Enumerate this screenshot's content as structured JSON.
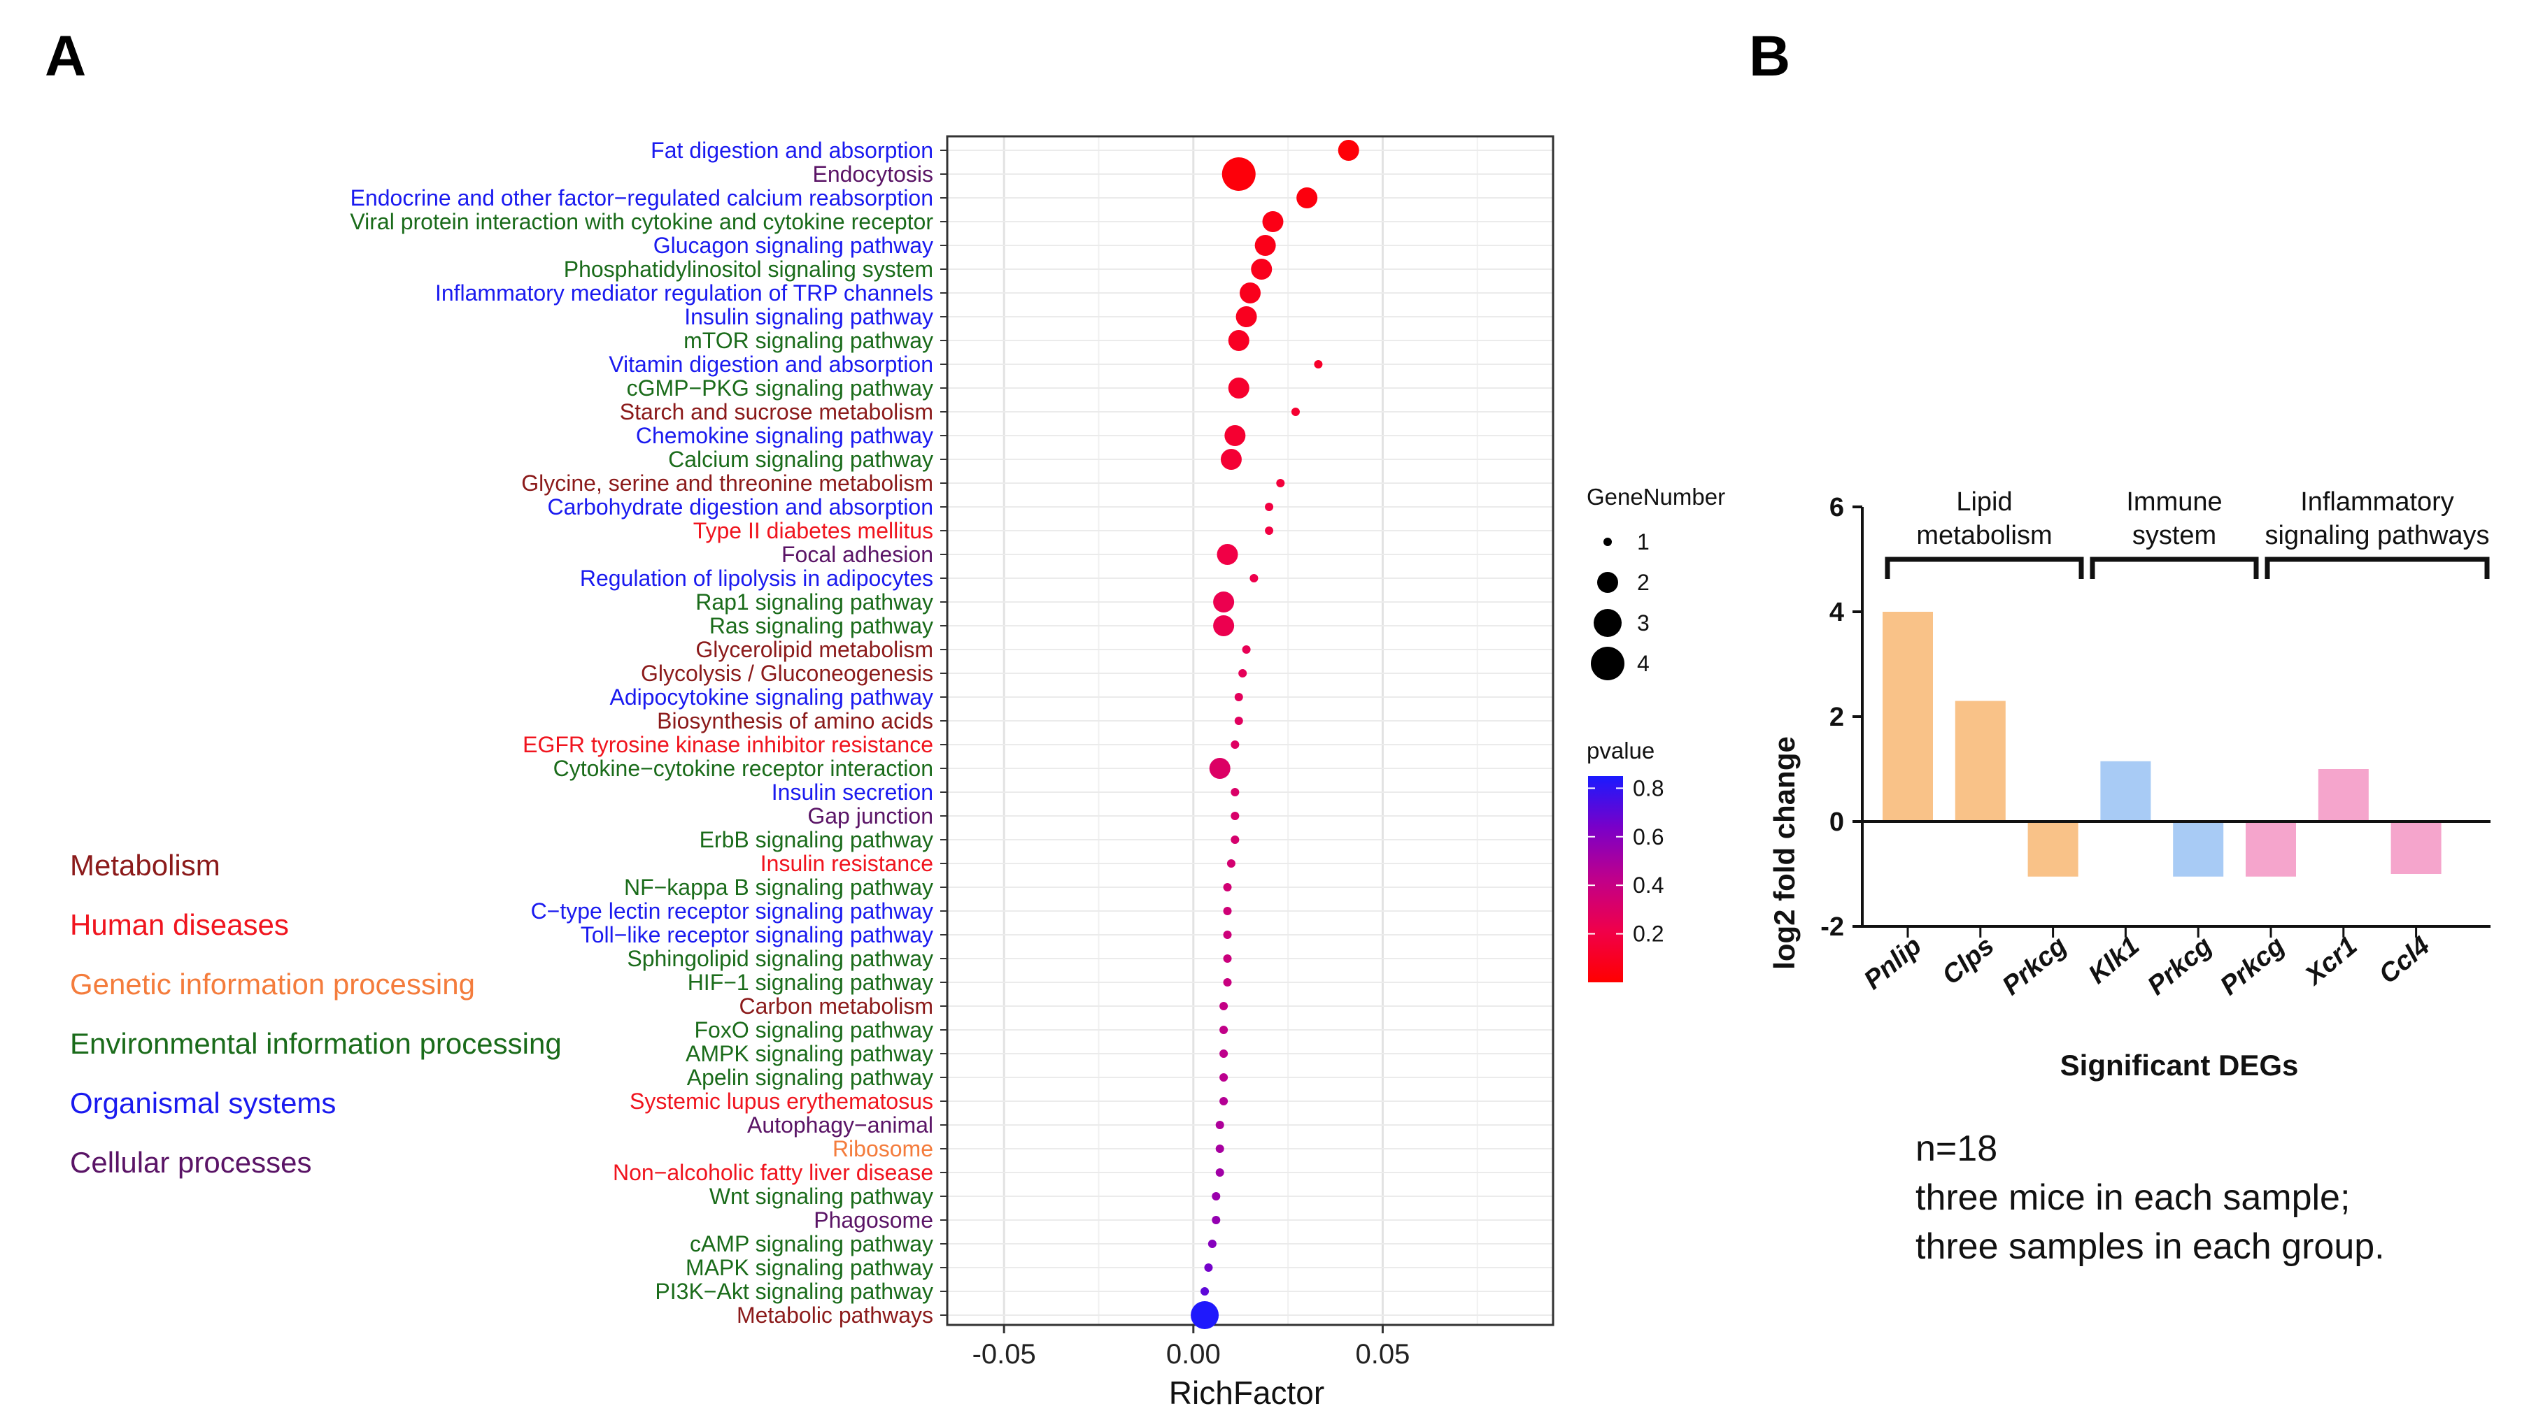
{
  "panel_a_label": "A",
  "panel_b_label": "B",
  "colors": {
    "Metabolism": "#8b1a1a",
    "Human diseases": "#f0141e",
    "Genetic information processing": "#f47c3c",
    "Environmental information processing": "#1a6b1a",
    "Organismal systems": "#1a1aef",
    "Cellular processes": "#5a1466"
  },
  "category_legend": [
    "Metabolism",
    "Human diseases",
    "Genetic information processing",
    "Environmental information processing",
    "Organismal systems",
    "Cellular processes"
  ],
  "chart_data": [
    {
      "type": "scatter",
      "xlabel": "RichFactor",
      "xlim": [
        -0.065,
        0.095
      ],
      "xticks": [
        -0.05,
        0.0,
        0.05
      ],
      "xtick_labels": [
        "-0.05",
        "0.00",
        "0.05"
      ],
      "size_legend_title": "GeneNumber",
      "size_legend_values": [
        1,
        2,
        3,
        4
      ],
      "color_legend_title": "pvalue",
      "color_legend_ticks": [
        "0.8",
        "0.6",
        "0.4",
        "0.2"
      ],
      "color_legend_values": [
        0.8,
        0.6,
        0.4,
        0.2
      ],
      "color_range": [
        0.0,
        0.85
      ],
      "points": [
        {
          "pathway": "Fat digestion and absorption",
          "category": "Organismal systems",
          "rich": 0.041,
          "genes": 2,
          "p": 0.02
        },
        {
          "pathway": "Endocytosis",
          "category": "Cellular processes",
          "rich": 0.012,
          "genes": 4,
          "p": 0.03
        },
        {
          "pathway": "Endocrine and other factor−regulated calcium reabsorption",
          "category": "Organismal systems",
          "rich": 0.03,
          "genes": 2,
          "p": 0.04
        },
        {
          "pathway": "Viral protein interaction with cytokine and cytokine receptor",
          "category": "Environmental information processing",
          "rich": 0.021,
          "genes": 2,
          "p": 0.06
        },
        {
          "pathway": "Glucagon signaling pathway",
          "category": "Organismal systems",
          "rich": 0.019,
          "genes": 2,
          "p": 0.07
        },
        {
          "pathway": "Phosphatidylinositol signaling system",
          "category": "Environmental information processing",
          "rich": 0.018,
          "genes": 2,
          "p": 0.08
        },
        {
          "pathway": "Inflammatory mediator regulation of TRP channels",
          "category": "Organismal systems",
          "rich": 0.015,
          "genes": 2,
          "p": 0.08
        },
        {
          "pathway": "Insulin signaling pathway",
          "category": "Organismal systems",
          "rich": 0.014,
          "genes": 2,
          "p": 0.09
        },
        {
          "pathway": "mTOR signaling pathway",
          "category": "Environmental information processing",
          "rich": 0.012,
          "genes": 2,
          "p": 0.1
        },
        {
          "pathway": "Vitamin digestion and absorption",
          "category": "Organismal systems",
          "rich": 0.033,
          "genes": 1,
          "p": 0.12
        },
        {
          "pathway": "cGMP−PKG signaling pathway",
          "category": "Environmental information processing",
          "rich": 0.012,
          "genes": 2,
          "p": 0.13
        },
        {
          "pathway": "Starch and sucrose metabolism",
          "category": "Metabolism",
          "rich": 0.027,
          "genes": 1,
          "p": 0.14
        },
        {
          "pathway": "Chemokine signaling pathway",
          "category": "Organismal systems",
          "rich": 0.011,
          "genes": 2,
          "p": 0.14
        },
        {
          "pathway": "Calcium signaling pathway",
          "category": "Environmental information processing",
          "rich": 0.01,
          "genes": 2,
          "p": 0.15
        },
        {
          "pathway": "Glycine, serine and threonine metabolism",
          "category": "Metabolism",
          "rich": 0.023,
          "genes": 1,
          "p": 0.17
        },
        {
          "pathway": "Carbohydrate digestion and absorption",
          "category": "Organismal systems",
          "rich": 0.02,
          "genes": 1,
          "p": 0.19
        },
        {
          "pathway": "Type II diabetes mellitus",
          "category": "Human diseases",
          "rich": 0.02,
          "genes": 1,
          "p": 0.19
        },
        {
          "pathway": "Focal adhesion",
          "category": "Cellular processes",
          "rich": 0.009,
          "genes": 2,
          "p": 0.2
        },
        {
          "pathway": "Regulation of lipolysis in adipocytes",
          "category": "Organismal systems",
          "rich": 0.016,
          "genes": 1,
          "p": 0.22
        },
        {
          "pathway": "Rap1 signaling pathway",
          "category": "Environmental information processing",
          "rich": 0.008,
          "genes": 2,
          "p": 0.23
        },
        {
          "pathway": "Ras signaling pathway",
          "category": "Environmental information processing",
          "rich": 0.008,
          "genes": 2,
          "p": 0.23
        },
        {
          "pathway": "Glycerolipid metabolism",
          "category": "Metabolism",
          "rich": 0.014,
          "genes": 1,
          "p": 0.25
        },
        {
          "pathway": "Glycolysis / Gluconeogenesis",
          "category": "Metabolism",
          "rich": 0.013,
          "genes": 1,
          "p": 0.26
        },
        {
          "pathway": "Adipocytokine signaling pathway",
          "category": "Organismal systems",
          "rich": 0.012,
          "genes": 1,
          "p": 0.27
        },
        {
          "pathway": "Biosynthesis of amino acids",
          "category": "Metabolism",
          "rich": 0.012,
          "genes": 1,
          "p": 0.28
        },
        {
          "pathway": "EGFR tyrosine kinase inhibitor resistance",
          "category": "Human diseases",
          "rich": 0.011,
          "genes": 1,
          "p": 0.29
        },
        {
          "pathway": "Cytokine−cytokine receptor interaction",
          "category": "Environmental information processing",
          "rich": 0.007,
          "genes": 2,
          "p": 0.3
        },
        {
          "pathway": "Insulin secretion",
          "category": "Organismal systems",
          "rich": 0.011,
          "genes": 1,
          "p": 0.31
        },
        {
          "pathway": "Gap junction",
          "category": "Cellular processes",
          "rich": 0.011,
          "genes": 1,
          "p": 0.32
        },
        {
          "pathway": "ErbB signaling pathway",
          "category": "Environmental information processing",
          "rich": 0.011,
          "genes": 1,
          "p": 0.33
        },
        {
          "pathway": "Insulin resistance",
          "category": "Human diseases",
          "rich": 0.01,
          "genes": 1,
          "p": 0.34
        },
        {
          "pathway": "NF−kappa B signaling pathway",
          "category": "Environmental information processing",
          "rich": 0.009,
          "genes": 1,
          "p": 0.35
        },
        {
          "pathway": "C−type lectin receptor signaling pathway",
          "category": "Organismal systems",
          "rich": 0.009,
          "genes": 1,
          "p": 0.36
        },
        {
          "pathway": "Toll−like receptor signaling pathway",
          "category": "Organismal systems",
          "rich": 0.009,
          "genes": 1,
          "p": 0.37
        },
        {
          "pathway": "Sphingolipid signaling pathway",
          "category": "Environmental information processing",
          "rich": 0.009,
          "genes": 1,
          "p": 0.38
        },
        {
          "pathway": "HIF−1 signaling pathway",
          "category": "Environmental information processing",
          "rich": 0.009,
          "genes": 1,
          "p": 0.39
        },
        {
          "pathway": "Carbon metabolism",
          "category": "Metabolism",
          "rich": 0.008,
          "genes": 1,
          "p": 0.41
        },
        {
          "pathway": "FoxO signaling pathway",
          "category": "Environmental information processing",
          "rich": 0.008,
          "genes": 1,
          "p": 0.42
        },
        {
          "pathway": "AMPK signaling pathway",
          "category": "Environmental information processing",
          "rich": 0.008,
          "genes": 1,
          "p": 0.43
        },
        {
          "pathway": "Apelin signaling pathway",
          "category": "Environmental information processing",
          "rich": 0.008,
          "genes": 1,
          "p": 0.44
        },
        {
          "pathway": "Systemic lupus erythematosus",
          "category": "Human diseases",
          "rich": 0.008,
          "genes": 1,
          "p": 0.46
        },
        {
          "pathway": "Autophagy−animal",
          "category": "Cellular processes",
          "rich": 0.007,
          "genes": 1,
          "p": 0.48
        },
        {
          "pathway": "Ribosome",
          "category": "Genetic information processing",
          "rich": 0.007,
          "genes": 1,
          "p": 0.5
        },
        {
          "pathway": "Non−alcoholic fatty liver disease",
          "category": "Human diseases",
          "rich": 0.007,
          "genes": 1,
          "p": 0.52
        },
        {
          "pathway": "Wnt signaling pathway",
          "category": "Environmental information processing",
          "rich": 0.006,
          "genes": 1,
          "p": 0.54
        },
        {
          "pathway": "Phagosome",
          "category": "Cellular processes",
          "rich": 0.006,
          "genes": 1,
          "p": 0.56
        },
        {
          "pathway": "cAMP signaling pathway",
          "category": "Environmental information processing",
          "rich": 0.005,
          "genes": 1,
          "p": 0.6
        },
        {
          "pathway": "MAPK signaling pathway",
          "category": "Environmental information processing",
          "rich": 0.004,
          "genes": 1,
          "p": 0.65
        },
        {
          "pathway": "PI3K−Akt signaling pathway",
          "category": "Environmental information processing",
          "rich": 0.003,
          "genes": 1,
          "p": 0.7
        },
        {
          "pathway": "Metabolic pathways",
          "category": "Metabolism",
          "rich": 0.003,
          "genes": 3,
          "p": 0.84
        }
      ]
    },
    {
      "type": "bar",
      "xlabel": "Significant DEGs",
      "ylabel": "log2 fold change",
      "ylim": [
        -2,
        6
      ],
      "yticks": [
        -2,
        0,
        2,
        4,
        6
      ],
      "ytick_labels": [
        "-2",
        "0",
        "2",
        "4",
        "6"
      ],
      "categories": [
        "Pnlip",
        "Clps",
        "Prkcg",
        "Klk1",
        "Prkcg",
        "Prkcg",
        "Xcr1",
        "Ccl4"
      ],
      "values": [
        4.0,
        2.3,
        -1.05,
        1.15,
        -1.05,
        -1.05,
        1.0,
        -1.0
      ],
      "bar_colors": [
        "#f9c288",
        "#f9c288",
        "#f9c288",
        "#a8cbf5",
        "#a8cbf5",
        "#f5a5cc",
        "#f5a5cc",
        "#f5a5cc"
      ],
      "groups": [
        {
          "label_lines": [
            "Lipid",
            "metabolism"
          ],
          "start": 0,
          "end": 2
        },
        {
          "label_lines": [
            "Immune",
            "system"
          ],
          "start": 3,
          "end": 4
        },
        {
          "label_lines": [
            "Inflammatory",
            "signaling pathways"
          ],
          "start": 5,
          "end": 7
        }
      ]
    }
  ],
  "note": {
    "line1": "n=18",
    "line2": "three mice in each sample;",
    "line3": "three samples in each group."
  }
}
